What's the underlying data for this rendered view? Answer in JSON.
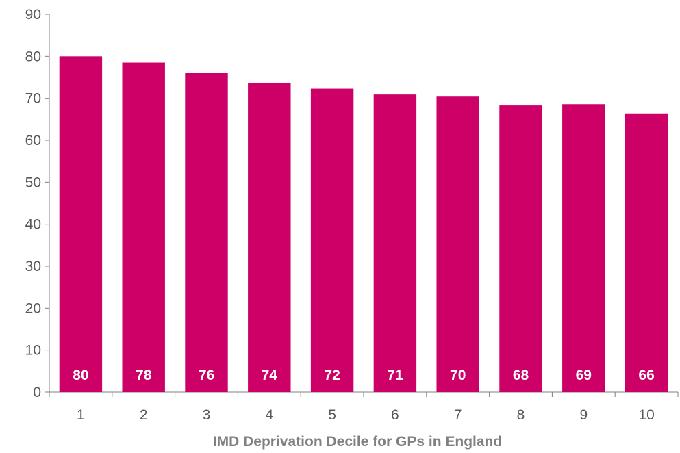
{
  "chart_data": {
    "type": "bar",
    "title": "",
    "xlabel": "IMD Deprivation Decile for GPs in England",
    "ylabel": "",
    "categories": [
      "1",
      "2",
      "3",
      "4",
      "5",
      "6",
      "7",
      "8",
      "9",
      "10"
    ],
    "values": [
      80,
      78.5,
      76,
      73.7,
      72.3,
      70.9,
      70.4,
      68.3,
      68.6,
      66.4
    ],
    "data_labels": [
      "80",
      "78",
      "76",
      "74",
      "72",
      "71",
      "70",
      "68",
      "69",
      "66"
    ],
    "ylim": [
      0,
      90
    ],
    "yticks": [
      0,
      10,
      20,
      30,
      40,
      50,
      60,
      70,
      80,
      90
    ],
    "grid": false,
    "legend": "none",
    "bar_color": "#CC0066",
    "axis_color": "#808080"
  }
}
